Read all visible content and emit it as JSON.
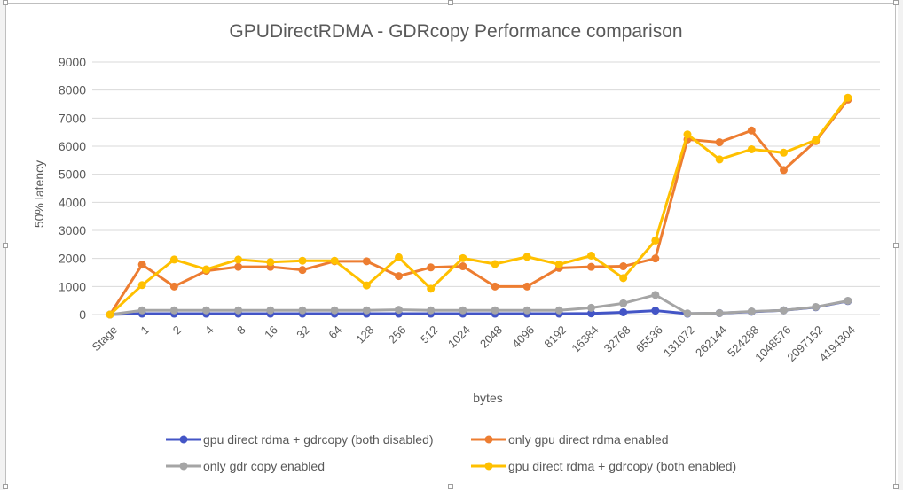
{
  "chart_data": {
    "type": "line",
    "title": "GPUDirectRDMA - GDRcopy Performance comparison",
    "xlabel": "bytes",
    "ylabel": "50% latency",
    "ylim": [
      0,
      9000
    ],
    "yticks": [
      0,
      1000,
      2000,
      3000,
      4000,
      5000,
      6000,
      7000,
      8000,
      9000
    ],
    "grid": true,
    "legend_position": "bottom",
    "categories": [
      "Stage",
      "1",
      "2",
      "4",
      "8",
      "16",
      "32",
      "64",
      "128",
      "256",
      "512",
      "1024",
      "2048",
      "4096",
      "8192",
      "16384",
      "32768",
      "65536",
      "131072",
      "262144",
      "524288",
      "1048576",
      "2097152",
      "4194304"
    ],
    "series": [
      {
        "name": "gpu direct rdma + gdrcopy (both disabled)",
        "color": "#4355c6",
        "values": [
          0,
          30,
          30,
          30,
          30,
          30,
          30,
          30,
          30,
          30,
          30,
          30,
          30,
          30,
          30,
          40,
          80,
          140,
          30,
          50,
          100,
          150,
          260,
          480
        ]
      },
      {
        "name": "only gpu direct rdma enabled",
        "color": "#ed7d31",
        "values": [
          0,
          1780,
          1000,
          1560,
          1700,
          1700,
          1590,
          1900,
          1900,
          1370,
          1680,
          1720,
          1000,
          1000,
          1660,
          1700,
          1720,
          2000,
          6240,
          6140,
          6560,
          5150,
          6180,
          7660
        ]
      },
      {
        "name": "only gdr copy enabled",
        "color": "#a5a5a5",
        "values": [
          0,
          150,
          150,
          150,
          150,
          150,
          150,
          150,
          150,
          170,
          150,
          150,
          150,
          150,
          150,
          240,
          400,
          700,
          40,
          50,
          110,
          150,
          270,
          490
        ]
      },
      {
        "name": "gpu direct rdma + gdrcopy  (both enabled)",
        "color": "#ffc000",
        "values": [
          0,
          1050,
          1960,
          1610,
          1960,
          1870,
          1920,
          1920,
          1040,
          2040,
          920,
          2010,
          1800,
          2060,
          1790,
          2100,
          1300,
          2640,
          6420,
          5530,
          5890,
          5770,
          6220,
          7730
        ]
      }
    ]
  }
}
